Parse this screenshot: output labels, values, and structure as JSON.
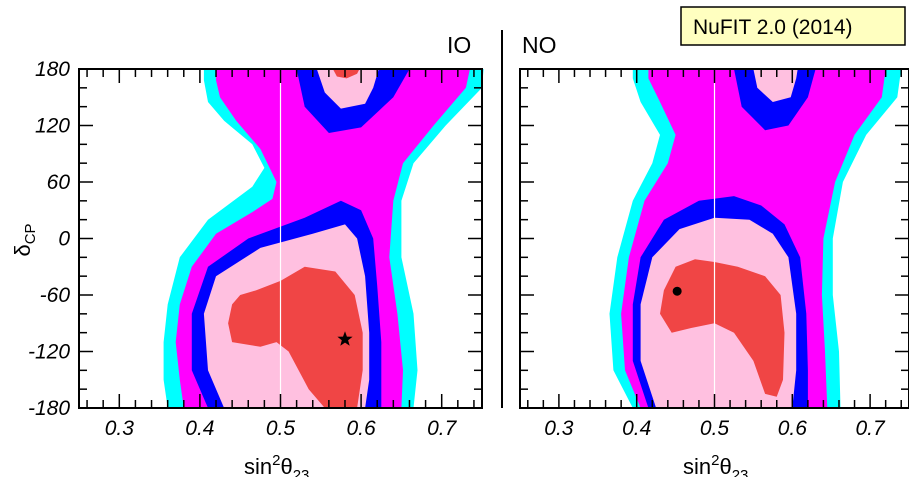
{
  "colors": {
    "cyan": "#00ffff",
    "magenta": "#ff00ff",
    "blue": "#0000ff",
    "pink": "#ffc0e0",
    "red": "#f04545",
    "banner_bg": "#ffffc0"
  },
  "banner": {
    "text": "NuFIT 2.0 (2014)"
  },
  "chart_data": [
    {
      "type": "contour",
      "panel": "IO",
      "xlabel": "sin",
      "xlabel_sup": "2",
      "xlabel_theta": "θ",
      "xlabel_sub": "23",
      "ylabel": "δ",
      "ylabel_sub": "CP",
      "xlim": [
        0.25,
        0.75
      ],
      "ylim": [
        -180,
        180
      ],
      "x_ticks": [
        "0.3",
        "0.4",
        "0.5",
        "0.6",
        "0.7"
      ],
      "y_ticks": [
        "180",
        "120",
        "60",
        "0",
        "-60",
        "-120",
        "-180"
      ],
      "x_tick_values": [
        0.3,
        0.4,
        0.5,
        0.6,
        0.7
      ],
      "y_tick_values": [
        180,
        120,
        60,
        0,
        -60,
        -120,
        -180
      ],
      "reference_line_x": 0.5,
      "best_fit": {
        "x": 0.58,
        "y": -107,
        "marker": "star"
      },
      "regions": [
        {
          "level": "outermost",
          "color": "cyan",
          "points": [
            [
              0.36,
              -180
            ],
            [
              0.355,
              -150
            ],
            [
              0.355,
              -110
            ],
            [
              0.36,
              -70
            ],
            [
              0.375,
              -20
            ],
            [
              0.41,
              20
            ],
            [
              0.465,
              55
            ],
            [
              0.48,
              75
            ],
            [
              0.465,
              100
            ],
            [
              0.43,
              125
            ],
            [
              0.41,
              145
            ],
            [
              0.405,
              168
            ],
            [
              0.405,
              180
            ],
            [
              0.752,
              180
            ],
            [
              0.75,
              160
            ],
            [
              0.705,
              120
            ],
            [
              0.665,
              80
            ],
            [
              0.65,
              40
            ],
            [
              0.65,
              -20
            ],
            [
              0.665,
              -80
            ],
            [
              0.67,
              -140
            ],
            [
              0.665,
              -180
            ]
          ]
        },
        {
          "level": "magenta",
          "color": "magenta",
          "points": [
            [
              0.38,
              -180
            ],
            [
              0.375,
              -150
            ],
            [
              0.37,
              -110
            ],
            [
              0.375,
              -70
            ],
            [
              0.39,
              -30
            ],
            [
              0.42,
              5
            ],
            [
              0.465,
              28
            ],
            [
              0.49,
              42
            ],
            [
              0.495,
              60
            ],
            [
              0.475,
              95
            ],
            [
              0.445,
              125
            ],
            [
              0.425,
              150
            ],
            [
              0.42,
              168
            ],
            [
              0.42,
              180
            ],
            [
              0.735,
              180
            ],
            [
              0.73,
              160
            ],
            [
              0.69,
              120
            ],
            [
              0.652,
              80
            ],
            [
              0.64,
              40
            ],
            [
              0.635,
              -20
            ],
            [
              0.645,
              -80
            ],
            [
              0.652,
              -140
            ],
            [
              0.65,
              -180
            ]
          ]
        },
        {
          "level": "blue",
          "color": "blue",
          "points": [
            [
              0.41,
              -180
            ],
            [
              0.39,
              -140
            ],
            [
              0.39,
              -80
            ],
            [
              0.41,
              -30
            ],
            [
              0.46,
              0
            ],
            [
              0.53,
              22
            ],
            [
              0.575,
              40
            ],
            [
              0.6,
              30
            ],
            [
              0.615,
              0
            ],
            [
              0.62,
              -50
            ],
            [
              0.625,
              -110
            ],
            [
              0.625,
              -180
            ]
          ]
        },
        {
          "level": "blue-top",
          "color": "blue",
          "points": [
            [
              0.52,
              180
            ],
            [
              0.53,
              140
            ],
            [
              0.56,
              112
            ],
            [
              0.6,
              118
            ],
            [
              0.64,
              150
            ],
            [
              0.66,
              180
            ]
          ]
        },
        {
          "level": "pink",
          "color": "pink",
          "points": [
            [
              0.43,
              -180
            ],
            [
              0.41,
              -140
            ],
            [
              0.405,
              -80
            ],
            [
              0.42,
              -40
            ],
            [
              0.475,
              -10
            ],
            [
              0.54,
              5
            ],
            [
              0.58,
              15
            ],
            [
              0.595,
              0
            ],
            [
              0.605,
              -40
            ],
            [
              0.61,
              -100
            ],
            [
              0.61,
              -150
            ],
            [
              0.605,
              -180
            ]
          ]
        },
        {
          "level": "pink-top",
          "color": "pink",
          "points": [
            [
              0.545,
              180
            ],
            [
              0.555,
              155
            ],
            [
              0.575,
              138
            ],
            [
              0.605,
              143
            ],
            [
              0.615,
              160
            ],
            [
              0.622,
              180
            ]
          ]
        },
        {
          "level": "red",
          "color": "red",
          "points": [
            [
              0.44,
              -70
            ],
            [
              0.435,
              -90
            ],
            [
              0.44,
              -110
            ],
            [
              0.475,
              -115
            ],
            [
              0.495,
              -110
            ],
            [
              0.51,
              -120
            ],
            [
              0.535,
              -160
            ],
            [
              0.555,
              -180
            ],
            [
              0.595,
              -180
            ],
            [
              0.602,
              -140
            ],
            [
              0.602,
              -100
            ],
            [
              0.592,
              -60
            ],
            [
              0.568,
              -35
            ],
            [
              0.53,
              -30
            ],
            [
              0.5,
              -45
            ],
            [
              0.47,
              -55
            ],
            [
              0.45,
              -60
            ]
          ]
        },
        {
          "level": "red-top",
          "color": "red",
          "points": [
            [
              0.565,
              180
            ],
            [
              0.57,
              172
            ],
            [
              0.582,
              170
            ],
            [
              0.595,
              175
            ],
            [
              0.598,
              180
            ]
          ]
        }
      ]
    },
    {
      "type": "contour",
      "panel": "NO",
      "xlabel": "sin",
      "xlabel_sup": "2",
      "xlabel_theta": "θ",
      "xlabel_sub": "23",
      "ylabel": "",
      "ylabel_sub": "",
      "xlim": [
        0.25,
        0.75
      ],
      "ylim": [
        -180,
        180
      ],
      "x_ticks": [
        "0.3",
        "0.4",
        "0.5",
        "0.6",
        "0.7"
      ],
      "y_ticks": [],
      "x_tick_values": [
        0.3,
        0.4,
        0.5,
        0.6,
        0.7
      ],
      "y_tick_values": [
        180,
        120,
        60,
        0,
        -60,
        -120,
        -180
      ],
      "reference_line_x": 0.5,
      "best_fit": {
        "x": 0.452,
        "y": -56,
        "marker": "dot"
      },
      "regions": [
        {
          "level": "outermost",
          "color": "cyan",
          "points": [
            [
              0.395,
              -180
            ],
            [
              0.37,
              -140
            ],
            [
              0.365,
              -80
            ],
            [
              0.375,
              -20
            ],
            [
              0.395,
              40
            ],
            [
              0.42,
              80
            ],
            [
              0.43,
              110
            ],
            [
              0.405,
              145
            ],
            [
              0.395,
              170
            ],
            [
              0.395,
              180
            ],
            [
              0.74,
              180
            ],
            [
              0.735,
              150
            ],
            [
              0.695,
              110
            ],
            [
              0.665,
              60
            ],
            [
              0.652,
              0
            ],
            [
              0.652,
              -60
            ],
            [
              0.66,
              -120
            ],
            [
              0.662,
              -180
            ]
          ]
        },
        {
          "level": "magenta",
          "color": "magenta",
          "points": [
            [
              0.405,
              -180
            ],
            [
              0.385,
              -140
            ],
            [
              0.38,
              -80
            ],
            [
              0.39,
              -20
            ],
            [
              0.41,
              40
            ],
            [
              0.44,
              80
            ],
            [
              0.45,
              110
            ],
            [
              0.43,
              145
            ],
            [
              0.415,
              170
            ],
            [
              0.415,
              180
            ],
            [
              0.72,
              180
            ],
            [
              0.715,
              150
            ],
            [
              0.68,
              110
            ],
            [
              0.655,
              60
            ],
            [
              0.64,
              0
            ],
            [
              0.638,
              -60
            ],
            [
              0.642,
              -120
            ],
            [
              0.645,
              -180
            ]
          ]
        },
        {
          "level": "blue",
          "color": "blue",
          "points": [
            [
              0.415,
              -180
            ],
            [
              0.395,
              -130
            ],
            [
              0.395,
              -70
            ],
            [
              0.405,
              -20
            ],
            [
              0.435,
              20
            ],
            [
              0.48,
              40
            ],
            [
              0.525,
              45
            ],
            [
              0.56,
              35
            ],
            [
              0.59,
              15
            ],
            [
              0.61,
              -20
            ],
            [
              0.618,
              -80
            ],
            [
              0.62,
              -140
            ],
            [
              0.62,
              -180
            ]
          ]
        },
        {
          "level": "blue-top",
          "color": "blue",
          "points": [
            [
              0.525,
              180
            ],
            [
              0.535,
              140
            ],
            [
              0.565,
              115
            ],
            [
              0.595,
              120
            ],
            [
              0.62,
              150
            ],
            [
              0.63,
              180
            ]
          ]
        },
        {
          "level": "pink",
          "color": "pink",
          "points": [
            [
              0.425,
              -180
            ],
            [
              0.405,
              -130
            ],
            [
              0.405,
              -70
            ],
            [
              0.42,
              -20
            ],
            [
              0.455,
              10
            ],
            [
              0.5,
              22
            ],
            [
              0.545,
              20
            ],
            [
              0.575,
              5
            ],
            [
              0.595,
              -20
            ],
            [
              0.605,
              -80
            ],
            [
              0.605,
              -140
            ],
            [
              0.6,
              -180
            ]
          ]
        },
        {
          "level": "pink-top",
          "color": "pink",
          "points": [
            [
              0.55,
              180
            ],
            [
              0.555,
              160
            ],
            [
              0.575,
              145
            ],
            [
              0.598,
              150
            ],
            [
              0.605,
              170
            ],
            [
              0.607,
              180
            ]
          ]
        },
        {
          "level": "red",
          "color": "red",
          "points": [
            [
              0.43,
              -80
            ],
            [
              0.435,
              -55
            ],
            [
              0.45,
              -30
            ],
            [
              0.475,
              -22
            ],
            [
              0.5,
              -25
            ],
            [
              0.53,
              -30
            ],
            [
              0.565,
              -40
            ],
            [
              0.585,
              -60
            ],
            [
              0.59,
              -100
            ],
            [
              0.588,
              -150
            ],
            [
              0.58,
              -168
            ],
            [
              0.565,
              -165
            ],
            [
              0.55,
              -130
            ],
            [
              0.525,
              -100
            ],
            [
              0.5,
              -90
            ],
            [
              0.47,
              -95
            ],
            [
              0.445,
              -100
            ]
          ]
        }
      ]
    }
  ]
}
